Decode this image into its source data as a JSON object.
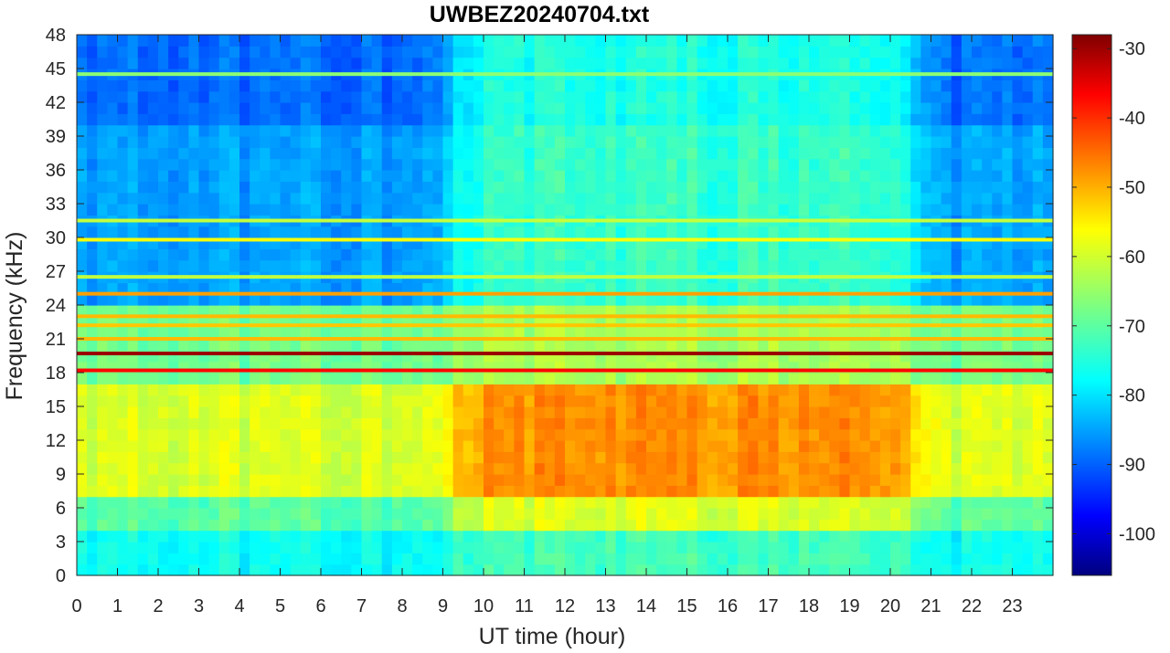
{
  "chart_data": {
    "type": "heatmap",
    "title": "UWBEZ20240704.txt",
    "xlabel": "UT time (hour)",
    "ylabel": "Frequency (kHz)",
    "xlim": [
      0,
      24
    ],
    "ylim": [
      0,
      48
    ],
    "x_ticks": [
      0,
      1,
      2,
      3,
      4,
      5,
      6,
      7,
      8,
      9,
      10,
      11,
      12,
      13,
      14,
      15,
      16,
      17,
      18,
      19,
      20,
      21,
      22,
      23
    ],
    "x_tick_labels": [
      "0",
      "1",
      "2",
      "3",
      "4",
      "5",
      "6",
      "7",
      "8",
      "9",
      "10",
      "11",
      "12",
      "13",
      "14",
      "15",
      "16",
      "17",
      "18",
      "19",
      "20",
      "21",
      "22",
      "23"
    ],
    "y_ticks": [
      0,
      3,
      6,
      9,
      12,
      15,
      18,
      21,
      24,
      27,
      30,
      33,
      36,
      39,
      42,
      45,
      48
    ],
    "y_tick_labels": [
      "0",
      "3",
      "6",
      "9",
      "12",
      "15",
      "18",
      "21",
      "24",
      "27",
      "30",
      "33",
      "36",
      "39",
      "42",
      "45",
      "48"
    ],
    "colorbar": {
      "colormap": "jet",
      "clim": [
        -106,
        -28
      ],
      "ticks": [
        -100,
        -90,
        -80,
        -70,
        -60,
        -50,
        -40,
        -30
      ],
      "tick_labels": [
        "-100",
        "-90",
        "-80",
        "-70",
        "-60",
        "-50",
        "-40",
        "-30"
      ]
    },
    "grid": false,
    "legend": "none",
    "bands": [
      {
        "freq_khz": 19.7,
        "level_db": -30
      },
      {
        "freq_khz": 18.2,
        "level_db": -38
      },
      {
        "freq_khz": 25.0,
        "level_db": -50
      },
      {
        "freq_khz": 23.0,
        "level_db": -52
      },
      {
        "freq_khz": 22.2,
        "level_db": -53
      },
      {
        "freq_khz": 21.0,
        "level_db": -52
      },
      {
        "freq_khz": 31.5,
        "level_db": -62
      },
      {
        "freq_khz": 44.5,
        "level_db": -66
      },
      {
        "freq_khz": 29.8,
        "level_db": -58
      },
      {
        "freq_khz": 26.5,
        "level_db": -62
      }
    ]
  }
}
